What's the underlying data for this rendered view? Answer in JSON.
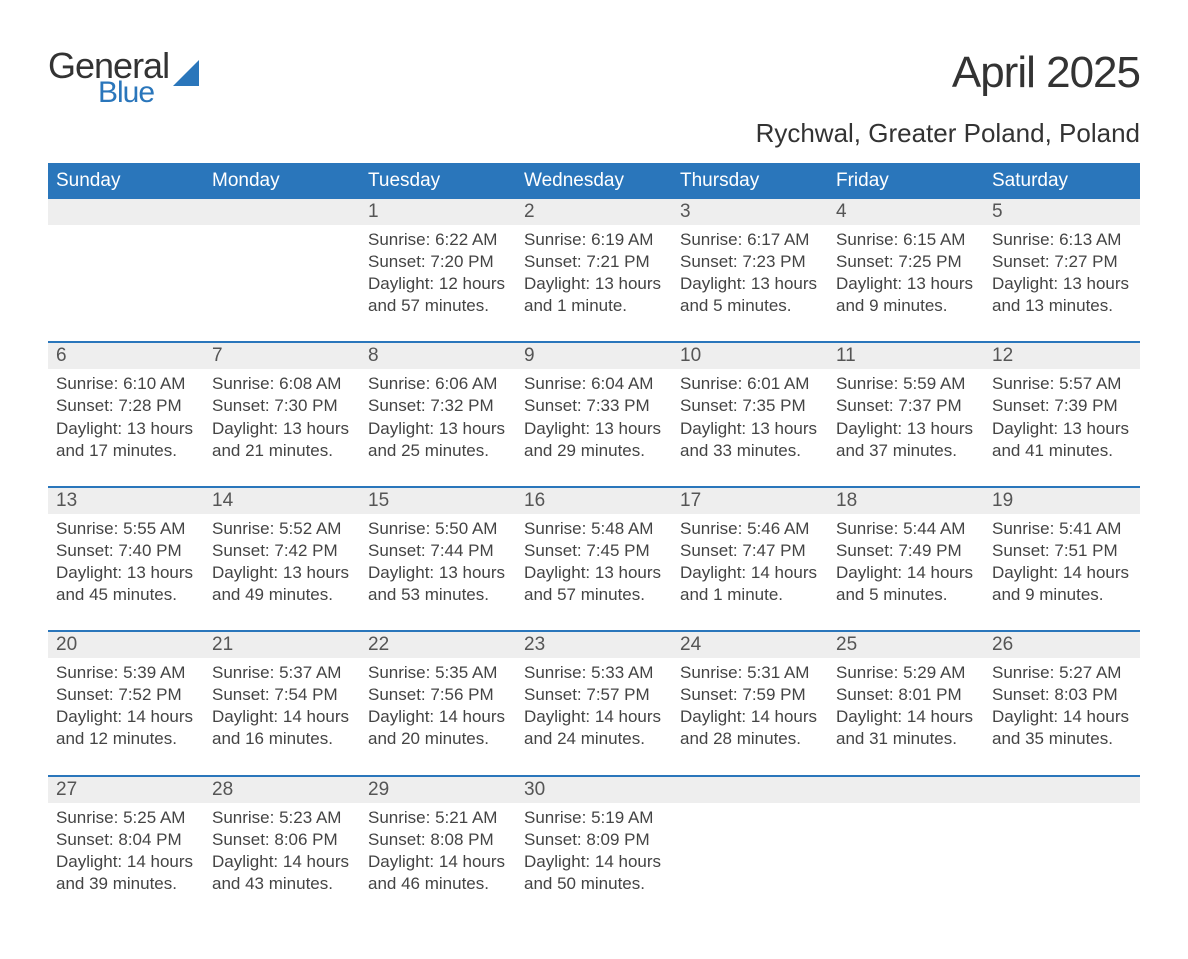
{
  "logo": {
    "word1": "General",
    "word2": "Blue"
  },
  "title": "April 2025",
  "location": "Rychwal, Greater Poland, Poland",
  "colors": {
    "header_blue": "#2a76bb",
    "daynum_bg": "#eeeeee",
    "text": "#333333",
    "cell_text": "#444444",
    "background": "#ffffff"
  },
  "fonts": {
    "title_pt": 44,
    "location_pt": 26,
    "header_pt": 19,
    "body_pt": 17
  },
  "day_headers": [
    "Sunday",
    "Monday",
    "Tuesday",
    "Wednesday",
    "Thursday",
    "Friday",
    "Saturday"
  ],
  "weeks": [
    [
      {
        "day": "",
        "sunrise": "",
        "sunset": "",
        "daylight": ""
      },
      {
        "day": "",
        "sunrise": "",
        "sunset": "",
        "daylight": ""
      },
      {
        "day": "1",
        "sunrise": "Sunrise: 6:22 AM",
        "sunset": "Sunset: 7:20 PM",
        "daylight": "Daylight: 12 hours and 57 minutes."
      },
      {
        "day": "2",
        "sunrise": "Sunrise: 6:19 AM",
        "sunset": "Sunset: 7:21 PM",
        "daylight": "Daylight: 13 hours and 1 minute."
      },
      {
        "day": "3",
        "sunrise": "Sunrise: 6:17 AM",
        "sunset": "Sunset: 7:23 PM",
        "daylight": "Daylight: 13 hours and 5 minutes."
      },
      {
        "day": "4",
        "sunrise": "Sunrise: 6:15 AM",
        "sunset": "Sunset: 7:25 PM",
        "daylight": "Daylight: 13 hours and 9 minutes."
      },
      {
        "day": "5",
        "sunrise": "Sunrise: 6:13 AM",
        "sunset": "Sunset: 7:27 PM",
        "daylight": "Daylight: 13 hours and 13 minutes."
      }
    ],
    [
      {
        "day": "6",
        "sunrise": "Sunrise: 6:10 AM",
        "sunset": "Sunset: 7:28 PM",
        "daylight": "Daylight: 13 hours and 17 minutes."
      },
      {
        "day": "7",
        "sunrise": "Sunrise: 6:08 AM",
        "sunset": "Sunset: 7:30 PM",
        "daylight": "Daylight: 13 hours and 21 minutes."
      },
      {
        "day": "8",
        "sunrise": "Sunrise: 6:06 AM",
        "sunset": "Sunset: 7:32 PM",
        "daylight": "Daylight: 13 hours and 25 minutes."
      },
      {
        "day": "9",
        "sunrise": "Sunrise: 6:04 AM",
        "sunset": "Sunset: 7:33 PM",
        "daylight": "Daylight: 13 hours and 29 minutes."
      },
      {
        "day": "10",
        "sunrise": "Sunrise: 6:01 AM",
        "sunset": "Sunset: 7:35 PM",
        "daylight": "Daylight: 13 hours and 33 minutes."
      },
      {
        "day": "11",
        "sunrise": "Sunrise: 5:59 AM",
        "sunset": "Sunset: 7:37 PM",
        "daylight": "Daylight: 13 hours and 37 minutes."
      },
      {
        "day": "12",
        "sunrise": "Sunrise: 5:57 AM",
        "sunset": "Sunset: 7:39 PM",
        "daylight": "Daylight: 13 hours and 41 minutes."
      }
    ],
    [
      {
        "day": "13",
        "sunrise": "Sunrise: 5:55 AM",
        "sunset": "Sunset: 7:40 PM",
        "daylight": "Daylight: 13 hours and 45 minutes."
      },
      {
        "day": "14",
        "sunrise": "Sunrise: 5:52 AM",
        "sunset": "Sunset: 7:42 PM",
        "daylight": "Daylight: 13 hours and 49 minutes."
      },
      {
        "day": "15",
        "sunrise": "Sunrise: 5:50 AM",
        "sunset": "Sunset: 7:44 PM",
        "daylight": "Daylight: 13 hours and 53 minutes."
      },
      {
        "day": "16",
        "sunrise": "Sunrise: 5:48 AM",
        "sunset": "Sunset: 7:45 PM",
        "daylight": "Daylight: 13 hours and 57 minutes."
      },
      {
        "day": "17",
        "sunrise": "Sunrise: 5:46 AM",
        "sunset": "Sunset: 7:47 PM",
        "daylight": "Daylight: 14 hours and 1 minute."
      },
      {
        "day": "18",
        "sunrise": "Sunrise: 5:44 AM",
        "sunset": "Sunset: 7:49 PM",
        "daylight": "Daylight: 14 hours and 5 minutes."
      },
      {
        "day": "19",
        "sunrise": "Sunrise: 5:41 AM",
        "sunset": "Sunset: 7:51 PM",
        "daylight": "Daylight: 14 hours and 9 minutes."
      }
    ],
    [
      {
        "day": "20",
        "sunrise": "Sunrise: 5:39 AM",
        "sunset": "Sunset: 7:52 PM",
        "daylight": "Daylight: 14 hours and 12 minutes."
      },
      {
        "day": "21",
        "sunrise": "Sunrise: 5:37 AM",
        "sunset": "Sunset: 7:54 PM",
        "daylight": "Daylight: 14 hours and 16 minutes."
      },
      {
        "day": "22",
        "sunrise": "Sunrise: 5:35 AM",
        "sunset": "Sunset: 7:56 PM",
        "daylight": "Daylight: 14 hours and 20 minutes."
      },
      {
        "day": "23",
        "sunrise": "Sunrise: 5:33 AM",
        "sunset": "Sunset: 7:57 PM",
        "daylight": "Daylight: 14 hours and 24 minutes."
      },
      {
        "day": "24",
        "sunrise": "Sunrise: 5:31 AM",
        "sunset": "Sunset: 7:59 PM",
        "daylight": "Daylight: 14 hours and 28 minutes."
      },
      {
        "day": "25",
        "sunrise": "Sunrise: 5:29 AM",
        "sunset": "Sunset: 8:01 PM",
        "daylight": "Daylight: 14 hours and 31 minutes."
      },
      {
        "day": "26",
        "sunrise": "Sunrise: 5:27 AM",
        "sunset": "Sunset: 8:03 PM",
        "daylight": "Daylight: 14 hours and 35 minutes."
      }
    ],
    [
      {
        "day": "27",
        "sunrise": "Sunrise: 5:25 AM",
        "sunset": "Sunset: 8:04 PM",
        "daylight": "Daylight: 14 hours and 39 minutes."
      },
      {
        "day": "28",
        "sunrise": "Sunrise: 5:23 AM",
        "sunset": "Sunset: 8:06 PM",
        "daylight": "Daylight: 14 hours and 43 minutes."
      },
      {
        "day": "29",
        "sunrise": "Sunrise: 5:21 AM",
        "sunset": "Sunset: 8:08 PM",
        "daylight": "Daylight: 14 hours and 46 minutes."
      },
      {
        "day": "30",
        "sunrise": "Sunrise: 5:19 AM",
        "sunset": "Sunset: 8:09 PM",
        "daylight": "Daylight: 14 hours and 50 minutes."
      },
      {
        "day": "",
        "sunrise": "",
        "sunset": "",
        "daylight": ""
      },
      {
        "day": "",
        "sunrise": "",
        "sunset": "",
        "daylight": ""
      },
      {
        "day": "",
        "sunrise": "",
        "sunset": "",
        "daylight": ""
      }
    ]
  ]
}
